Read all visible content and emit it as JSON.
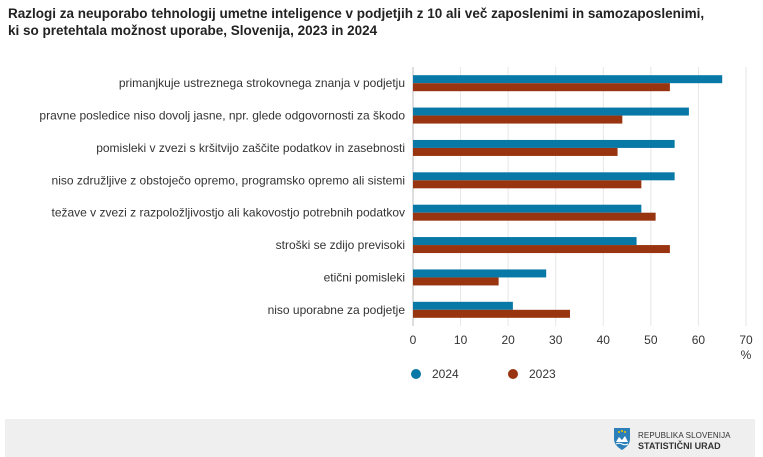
{
  "title_line1": "Razlogi za neuporabo tehnologij umetne inteligence v podjetjih z 10 ali več zaposlenimi in samozaposlenimi,",
  "title_line2": "ki so pretehtala možnost uporabe, Slovenija, 2023 in 2024",
  "colors": {
    "series_2024": "#0879a6",
    "series_2023": "#98340f",
    "grid": "#e6e6e6"
  },
  "chart_data": {
    "type": "bar",
    "orientation": "horizontal",
    "categories": [
      "primanjkuje ustreznega strokovnega znanja v podjetju",
      "pravne posledice niso dovolj jasne, npr. glede odgovornosti za škodo",
      "pomisleki v zvezi s kršitvijo zaščite podatkov in zasebnosti",
      "niso združljive z obstoječo opremo, programsko opremo ali sistemi",
      "težave v zvezi z razpoložljivostjo ali kakovostjo potrebnih podatkov",
      "stroški se zdijo previsoki",
      "etični pomisleki",
      "niso uporabne za podjetje"
    ],
    "series": [
      {
        "name": "2024",
        "color": "#0879a6",
        "values": [
          65,
          58,
          55,
          55,
          48,
          47,
          28,
          21
        ]
      },
      {
        "name": "2023",
        "color": "#98340f",
        "values": [
          54,
          44,
          43,
          48,
          51,
          54,
          18,
          33
        ]
      }
    ],
    "xlim": [
      0,
      70
    ],
    "xticks": [
      0,
      10,
      20,
      30,
      40,
      50,
      60,
      70
    ],
    "xlabel": "%",
    "grid": true,
    "legend_position": "bottom-left"
  },
  "footer": {
    "logo_line1": "REPUBLIKA SLOVENIJA",
    "logo_line2": "STATISTIČNI URAD"
  }
}
